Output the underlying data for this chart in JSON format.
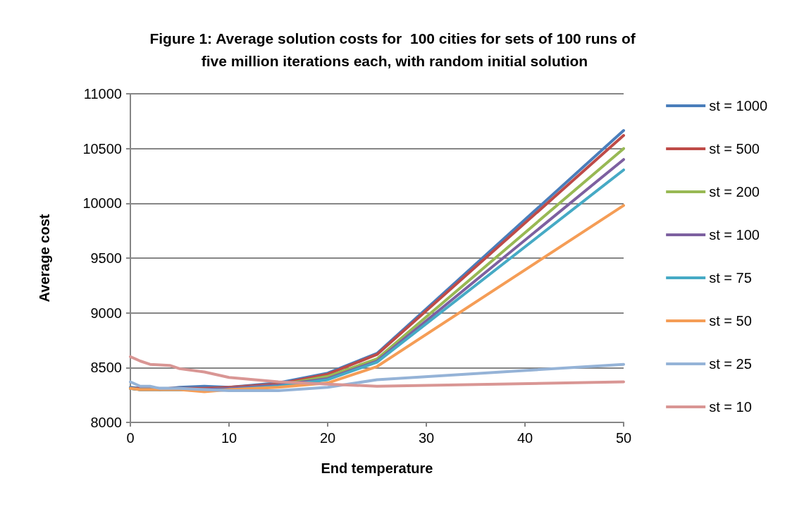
{
  "chart_data": {
    "type": "line",
    "title": "Figure 1: Average solution costs for  100 cities for sets of 100 runs of five million iterations each, with random initial solution",
    "xlabel": "End temperature",
    "ylabel": "Average cost",
    "x": [
      0,
      1,
      2,
      3,
      4,
      5,
      7.5,
      10,
      15,
      20,
      25,
      50
    ],
    "xlim": [
      0,
      50
    ],
    "xticks": [
      0,
      10,
      20,
      30,
      40,
      50
    ],
    "ylim": [
      8000,
      11000
    ],
    "yticks": [
      8000,
      8500,
      9000,
      9500,
      10000,
      10500,
      11000
    ],
    "grid": "y",
    "legend": "right",
    "marker": "none",
    "line_style": "solid",
    "series": [
      {
        "name": "st = 1000",
        "color": "#4a7ebb",
        "values": [
          8320,
          8310,
          8310,
          8310,
          8310,
          8320,
          8330,
          8320,
          8360,
          8450,
          8630,
          10665
        ]
      },
      {
        "name": "st = 500",
        "color": "#be4b48",
        "values": [
          8310,
          8310,
          8310,
          8300,
          8310,
          8310,
          8310,
          8320,
          8350,
          8440,
          8620,
          10620
        ]
      },
      {
        "name": "st = 200",
        "color": "#98b954",
        "values": [
          8310,
          8300,
          8300,
          8300,
          8300,
          8300,
          8300,
          8310,
          8340,
          8420,
          8580,
          10500
        ]
      },
      {
        "name": "st = 100",
        "color": "#7d60a0",
        "values": [
          8310,
          8300,
          8300,
          8300,
          8300,
          8300,
          8300,
          8310,
          8340,
          8400,
          8560,
          10400
        ]
      },
      {
        "name": "st = 75",
        "color": "#46aac5",
        "values": [
          8310,
          8300,
          8300,
          8300,
          8300,
          8300,
          8290,
          8300,
          8330,
          8390,
          8550,
          10305
        ]
      },
      {
        "name": "st = 50",
        "color": "#f59d56",
        "values": [
          8310,
          8300,
          8300,
          8300,
          8300,
          8300,
          8280,
          8300,
          8320,
          8360,
          8510,
          9980
        ]
      },
      {
        "name": "st = 25",
        "color": "#95b3d7",
        "values": [
          8370,
          8330,
          8330,
          8310,
          8310,
          8310,
          8300,
          8290,
          8290,
          8320,
          8390,
          8530
        ]
      },
      {
        "name": "st = 10",
        "color": "#d99694",
        "values": [
          8600,
          8560,
          8530,
          8525,
          8520,
          8490,
          8460,
          8410,
          8370,
          8350,
          8330,
          8370
        ]
      }
    ]
  }
}
